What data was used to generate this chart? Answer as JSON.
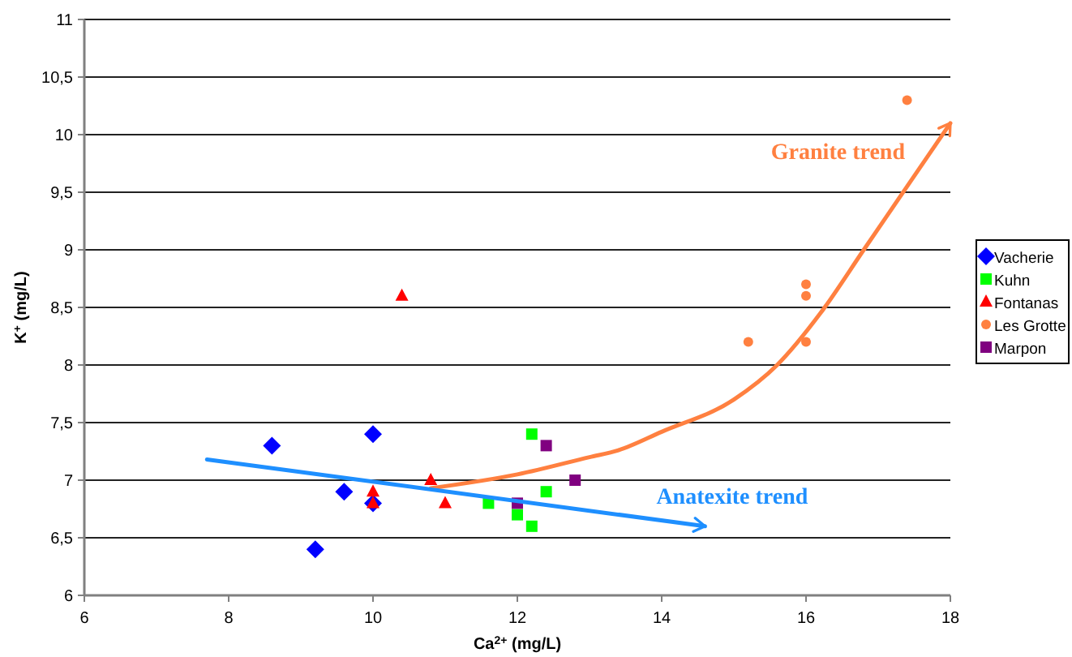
{
  "chart_data": {
    "type": "scatter",
    "xlabel": "Ca$^{2+}$ (mg/L)",
    "ylabel": "K$^{+}$ (mg/L)",
    "xlim": [
      6,
      18
    ],
    "xticks": [
      6,
      8,
      10,
      12,
      14,
      16,
      18
    ],
    "ylim": [
      6,
      11
    ],
    "yticks": [
      6,
      {
        "value": 6.5,
        "label": "6,5"
      },
      7,
      {
        "value": 7.5,
        "label": "7,5"
      },
      8,
      {
        "value": 8.5,
        "label": "8,5"
      },
      9,
      {
        "value": 9.5,
        "label": "9,5"
      },
      10,
      {
        "value": 10.5,
        "label": "10,5"
      },
      11
    ],
    "grid": "y",
    "legend": "right",
    "series": [
      {
        "name": "Vacherie",
        "color": "#0000ff",
        "marker": "diamond",
        "x": [
          8.6,
          10,
          9.6,
          10,
          9.2
        ],
        "values": [
          7.3,
          7.4,
          6.9,
          6.8,
          6.4
        ]
      },
      {
        "name": "Kuhn",
        "color": "#00ff00",
        "marker": "square",
        "x": [
          12.2,
          12.4,
          11.6,
          12,
          12.2
        ],
        "values": [
          7.4,
          6.9,
          6.8,
          6.7,
          6.6
        ]
      },
      {
        "name": "Fontanas",
        "color": "#ff0000",
        "marker": "triangle",
        "x": [
          10.4,
          10,
          10,
          10.8,
          11
        ],
        "values": [
          8.6,
          6.9,
          6.8,
          7.0,
          6.8
        ]
      },
      {
        "name": "Les Grotte",
        "color": "#ff8040",
        "marker": "circle",
        "x": [
          17.4,
          15.2,
          16,
          16,
          16
        ],
        "values": [
          10.3,
          8.2,
          8.7,
          8.6,
          8.2
        ]
      },
      {
        "name": "Marpon",
        "color": "#800080",
        "marker": "square",
        "x": [
          12.4,
          12.8,
          12
        ],
        "values": [
          7.3,
          7.0,
          6.8
        ]
      },
      {
        "name": "Granite trend",
        "type": "line",
        "color": "#ff8040",
        "marker": "none",
        "x": [
          10.8,
          12,
          13,
          13.4,
          14,
          15,
          15.6,
          16.2,
          16.8,
          17.4,
          18
        ],
        "values": [
          6.93,
          7.05,
          7.2,
          7.26,
          7.42,
          7.7,
          8.0,
          8.45,
          9.0,
          9.55,
          10.1
        ]
      },
      {
        "name": "Anatexite trend",
        "type": "line",
        "color": "#1e8fff",
        "marker": "none",
        "x": [
          7.7,
          14.6
        ],
        "values": [
          7.18,
          6.6
        ]
      }
    ]
  }
}
